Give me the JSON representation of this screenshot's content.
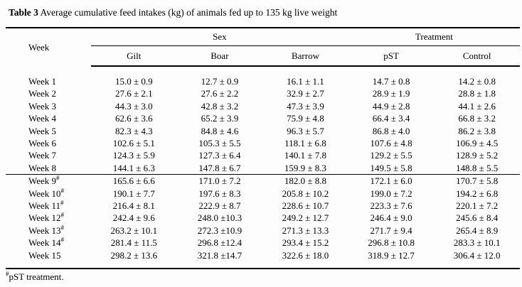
{
  "title": {
    "label": "Table 3",
    "caption": " Average cumulative feed intakes (kg) of animals fed up to 135 kg live weight"
  },
  "table": {
    "header": {
      "week": "Week",
      "sex_group": "Sex",
      "treatment_group": "Treatment",
      "columns": [
        "Gilt",
        "Boar",
        "Barrow",
        "pST",
        "Control"
      ]
    },
    "rows": [
      {
        "week": "Week 1",
        "marker": "",
        "values": [
          "15.0 ± 0.9",
          "12.7 ± 0.9",
          "16.1 ± 1.1",
          "14.7 ± 0.8",
          "14.2 ± 0.8"
        ]
      },
      {
        "week": "Week 2",
        "marker": "",
        "values": [
          "27.6 ± 2.1",
          "27.6 ± 2.2",
          "32.9 ± 2.7",
          "28.9 ± 1.9",
          "28.8 ± 1.8"
        ]
      },
      {
        "week": "Week 3",
        "marker": "",
        "values": [
          "44.3 ± 3.0",
          "42.8 ± 3.2",
          "47.3 ± 3.9",
          "44.9 ± 2.8",
          "44.1 ± 2.6"
        ]
      },
      {
        "week": "Week 4",
        "marker": "",
        "values": [
          "62.6 ± 3.6",
          "65.2 ± 3.9",
          "75.9 ± 4.8",
          "66.4 ± 3.4",
          "66.8 ± 3.2"
        ]
      },
      {
        "week": "Week 5",
        "marker": "",
        "values": [
          "82.3 ± 4.3",
          "84.8 ± 4.6",
          "96.3 ± 5.7",
          "86.8 ± 4.0",
          "86.2 ± 3.8"
        ]
      },
      {
        "week": "Week 6",
        "marker": "",
        "values": [
          "102.6 ± 5.1",
          "105.3 ± 5.5",
          "118.1 ± 6.8",
          "107.6 ± 4.8",
          "106.9 ± 4.5"
        ]
      },
      {
        "week": "Week 7",
        "marker": "",
        "values": [
          "124.3 ± 5.9",
          "127.3 ± 6.4",
          "140.1 ± 7.8",
          "129.2 ± 5.5",
          "128.9 ± 5.2"
        ]
      },
      {
        "week": "Week 8",
        "marker": "",
        "values": [
          "144.1 ± 6.3",
          "147.8 ± 6.7",
          "159.9 ± 8.3",
          "149.5 ± 5.8",
          "148.8 ± 5.5"
        ]
      },
      {
        "week": "Week 9",
        "marker": "#",
        "values": [
          "165.6 ± 6.6",
          "171.0 ± 7.2",
          "182.0 ± 8.8",
          "172.1 ± 6.0",
          "170.7 ± 5.8"
        ]
      },
      {
        "week": "Week 10",
        "marker": "#",
        "values": [
          "190.1 ± 7.7",
          "197.6 ± 8.3",
          "205.8 ± 10.2",
          "199.0 ± 7.2",
          "194.2 ± 6.8"
        ]
      },
      {
        "week": "Week 11",
        "marker": "#",
        "values": [
          "216.4 ± 8.1",
          "222.9 ± 8.7",
          "228.6 ± 10.7",
          "223.3 ± 7.6",
          "220.1 ± 7.2"
        ]
      },
      {
        "week": "Week 12",
        "marker": "#",
        "values": [
          "242.4 ± 9.6",
          "248.0 ±10.3",
          "249.2 ± 12.7",
          "246.4 ± 9.0",
          "245.6 ± 8.4"
        ]
      },
      {
        "week": "Week 13",
        "marker": "#",
        "values": [
          "263.2 ± 10.1",
          "272.3 ±10.9",
          "271.3 ± 13.3",
          "271.7 ± 9.4",
          "265.4 ± 8.9"
        ]
      },
      {
        "week": "Week 14",
        "marker": "#",
        "values": [
          "281.4 ± 11.5",
          "296.8 ±12.4",
          "293.4 ± 15.2",
          "296.8 ± 10.8",
          "283.3 ± 10.1"
        ]
      },
      {
        "week": "Week 15",
        "marker": "",
        "values": [
          "298.2 ± 13.6",
          "321.8 ±14.7",
          "322.6 ± 18.0",
          "318.9 ± 12.7",
          "306.4 ± 12.0"
        ]
      }
    ]
  },
  "footnote": {
    "marker": "#",
    "text": "pST treatment."
  }
}
